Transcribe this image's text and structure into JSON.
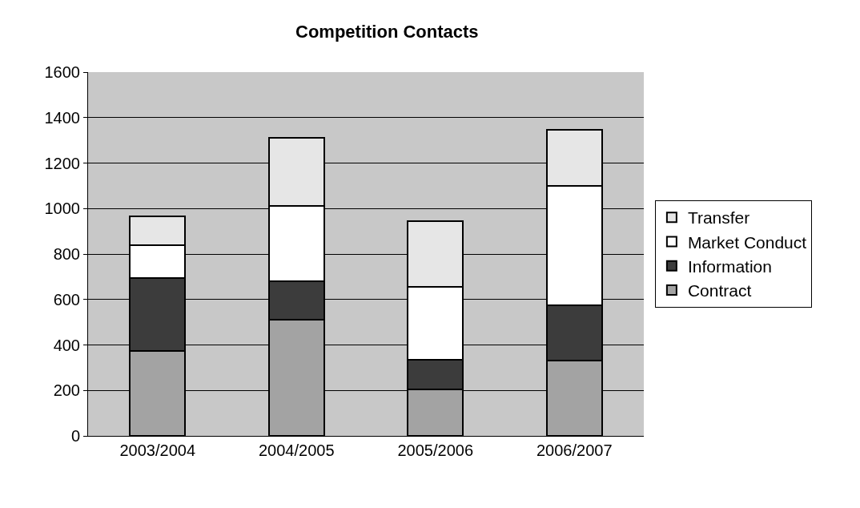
{
  "chart_data": {
    "type": "bar",
    "title": "Competition Contacts",
    "stacked": true,
    "categories": [
      "2003/2004",
      "2004/2005",
      "2005/2006",
      "2006/2007"
    ],
    "series": [
      {
        "name": "Contract",
        "color": "#a3a3a3",
        "values": [
          375,
          510,
          205,
          330
        ]
      },
      {
        "name": "Information",
        "color": "#3c3c3c",
        "values": [
          320,
          170,
          130,
          245
        ]
      },
      {
        "name": "Market Conduct",
        "color": "#ffffff",
        "values": [
          145,
          330,
          320,
          525
        ]
      },
      {
        "name": "Transfer",
        "color": "#e6e6e6",
        "values": [
          125,
          300,
          290,
          245
        ]
      }
    ],
    "ylim": [
      0,
      1600
    ],
    "yticks": [
      0,
      200,
      400,
      600,
      800,
      1000,
      1200,
      1400,
      1600
    ],
    "grid": "y",
    "legend": "right"
  }
}
